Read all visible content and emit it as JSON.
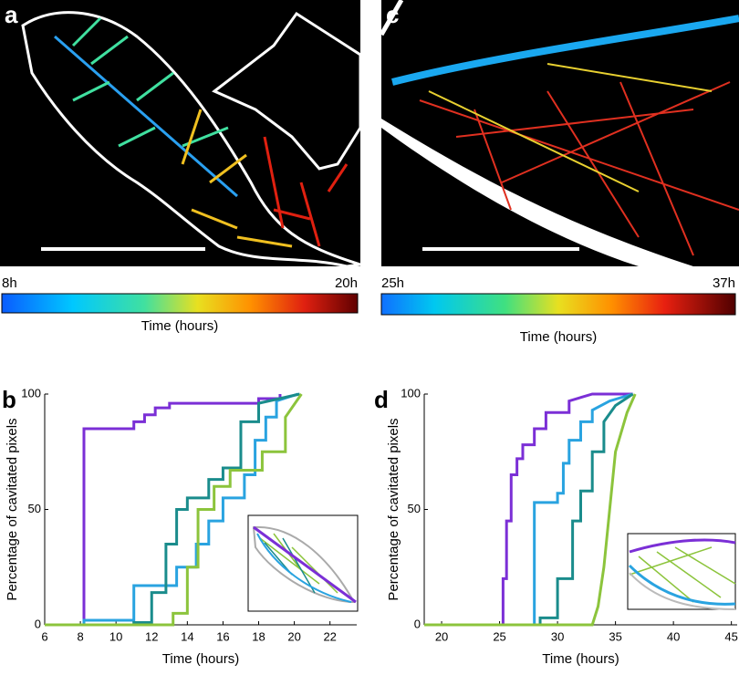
{
  "panel_labels": [
    "a",
    "b",
    "c",
    "d"
  ],
  "colorbars": [
    {
      "min_label": "8h",
      "max_label": "20h",
      "label": "Time (hours)"
    },
    {
      "min_label": "25h",
      "max_label": "37h",
      "label": "Time (hours)"
    }
  ],
  "chart_data": [
    {
      "type": "line",
      "xlabel": "Time (hours)",
      "ylabel": "Percentage of cavitated pixels",
      "xlim": [
        6,
        23.5
      ],
      "xticks": [
        6,
        8,
        10,
        12,
        14,
        16,
        18,
        20,
        22
      ],
      "ylim": [
        0,
        100
      ],
      "yticks": [
        0,
        50,
        100
      ],
      "series": [
        {
          "color": "#7b2fd6",
          "x": [
            6,
            8.2,
            8.2,
            11,
            11,
            11.6,
            11.6,
            12.2,
            12.2,
            13,
            13,
            18,
            18,
            19.2,
            19.2
          ],
          "values": [
            0,
            0,
            85,
            85,
            88,
            88,
            91,
            91,
            94,
            94,
            96,
            96,
            98,
            98,
            100
          ]
        },
        {
          "color": "#29a3e0",
          "x": [
            6,
            8.2,
            8.2,
            11,
            11,
            13.4,
            13.4,
            14.5,
            14.5,
            15.2,
            15.2,
            16,
            16,
            17.2,
            17.2,
            17.8,
            17.8,
            18.4,
            18.4,
            19,
            19,
            20.2
          ],
          "values": [
            0,
            0,
            2,
            2,
            17,
            17,
            25,
            25,
            35,
            35,
            45,
            45,
            55,
            55,
            65,
            65,
            80,
            80,
            90,
            90,
            97,
            100
          ]
        },
        {
          "color": "#1a8c8c",
          "x": [
            6,
            11,
            11,
            12,
            12,
            12.8,
            12.8,
            13.4,
            13.4,
            14,
            14,
            15.2,
            15.2,
            16,
            16,
            17,
            17,
            18,
            18,
            20.3
          ],
          "values": [
            0,
            0,
            1,
            1,
            14,
            14,
            35,
            35,
            50,
            50,
            55,
            55,
            63,
            63,
            68,
            68,
            88,
            88,
            96,
            100
          ]
        },
        {
          "color": "#8cc43c",
          "x": [
            6,
            13.2,
            13.2,
            14,
            14,
            14.6,
            14.6,
            15.5,
            15.5,
            16.4,
            16.4,
            18.2,
            18.2,
            19.5,
            19.5,
            20.4
          ],
          "values": [
            0,
            0,
            5,
            5,
            25,
            25,
            50,
            50,
            60,
            60,
            67,
            67,
            75,
            75,
            90,
            100
          ]
        }
      ]
    },
    {
      "type": "line",
      "xlabel": "Time (hours)",
      "ylabel": "Percentage of cavitated pixels",
      "xlim": [
        18.5,
        45.5
      ],
      "xticks": [
        20,
        25,
        30,
        35,
        40,
        45
      ],
      "ylim": [
        0,
        100
      ],
      "yticks": [
        0,
        50,
        100
      ],
      "series": [
        {
          "color": "#7b2fd6",
          "x": [
            18.5,
            25.3,
            25.3,
            25.6,
            25.6,
            26,
            26,
            26.5,
            26.5,
            27,
            27,
            28,
            28,
            29,
            29,
            31,
            31,
            33,
            36.5
          ],
          "values": [
            0,
            0,
            20,
            20,
            45,
            45,
            65,
            65,
            72,
            72,
            78,
            78,
            85,
            85,
            92,
            92,
            97,
            100,
            100
          ]
        },
        {
          "color": "#29a3e0",
          "x": [
            18.5,
            28,
            28,
            30,
            30,
            30.5,
            30.5,
            31,
            31,
            32,
            32,
            33,
            33,
            34.5,
            36.5
          ],
          "values": [
            0,
            0,
            53,
            53,
            57,
            57,
            70,
            70,
            80,
            80,
            88,
            88,
            93,
            97,
            100
          ]
        },
        {
          "color": "#1a8c8c",
          "x": [
            18.5,
            28.5,
            28.5,
            30,
            30,
            31.3,
            31.3,
            32,
            32,
            33,
            33,
            34,
            34,
            35,
            36.5
          ],
          "values": [
            0,
            0,
            3,
            3,
            20,
            20,
            45,
            45,
            58,
            58,
            75,
            75,
            88,
            95,
            100
          ]
        },
        {
          "color": "#8cc43c",
          "x": [
            18.5,
            33,
            33.5,
            34,
            34.5,
            35,
            36,
            36.7
          ],
          "values": [
            0,
            0,
            8,
            25,
            50,
            75,
            92,
            100
          ]
        }
      ]
    }
  ]
}
